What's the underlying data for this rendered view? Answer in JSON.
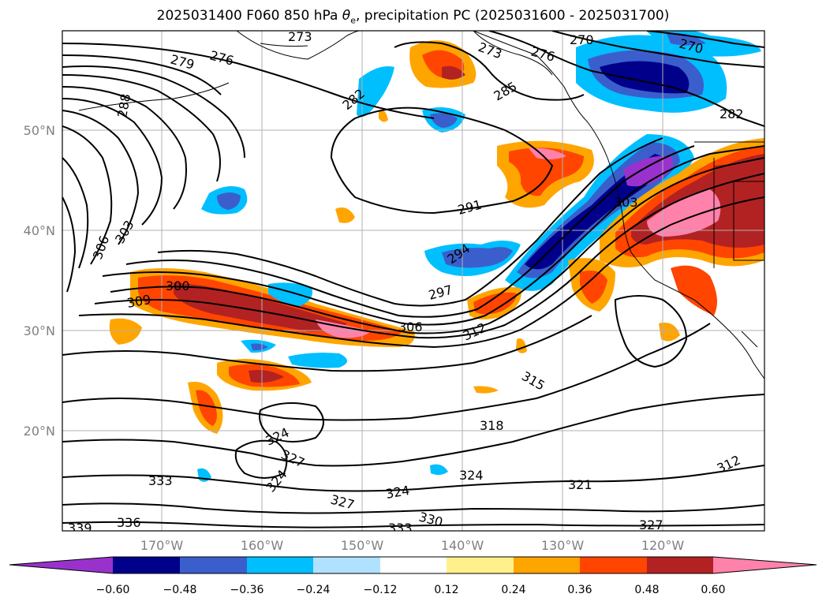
{
  "title_prefix": "2025031400 F060 850 hPa ",
  "title_theta": "θ",
  "title_sub": "e",
  "title_suffix": ", precipitation PC (2025031600 - 2025031700)",
  "lat_labels": [
    "50°N",
    "40°N",
    "30°N",
    "20°N"
  ],
  "lon_labels": [
    "170°W",
    "160°W",
    "150°W",
    "140°W",
    "130°W",
    "120°W"
  ],
  "colorbar": {
    "colors": [
      "#9932cc",
      "#00008b",
      "#3a5fcd",
      "#00bfff",
      "#b0e2ff",
      "#ffffff",
      "#fff08c",
      "#ffa500",
      "#ff4500",
      "#b22222",
      "#ff82ab"
    ],
    "ticks": [
      "−0.60",
      "−0.48",
      "−0.36",
      "−0.24",
      "−0.12",
      "0.12",
      "0.24",
      "0.36",
      "0.48",
      "0.60"
    ]
  },
  "contour_labels": [
    {
      "text": "279"
    },
    {
      "text": "276"
    },
    {
      "text": "273"
    },
    {
      "text": "270"
    },
    {
      "text": "276"
    },
    {
      "text": "270"
    },
    {
      "text": "273"
    },
    {
      "text": "288"
    },
    {
      "text": "282"
    },
    {
      "text": "285"
    },
    {
      "text": "282"
    },
    {
      "text": "291"
    },
    {
      "text": "303"
    },
    {
      "text": "306"
    },
    {
      "text": "303"
    },
    {
      "text": "294"
    },
    {
      "text": "300"
    },
    {
      "text": "309"
    },
    {
      "text": "297"
    },
    {
      "text": "306"
    },
    {
      "text": "312"
    },
    {
      "text": "315"
    },
    {
      "text": "318"
    },
    {
      "text": "324"
    },
    {
      "text": "327"
    },
    {
      "text": "324"
    },
    {
      "text": "333"
    },
    {
      "text": "324"
    },
    {
      "text": "324"
    },
    {
      "text": "327"
    },
    {
      "text": "321"
    },
    {
      "text": "312"
    },
    {
      "text": "336"
    },
    {
      "text": "339"
    },
    {
      "text": "330"
    },
    {
      "text": "333"
    },
    {
      "text": "327"
    }
  ]
}
